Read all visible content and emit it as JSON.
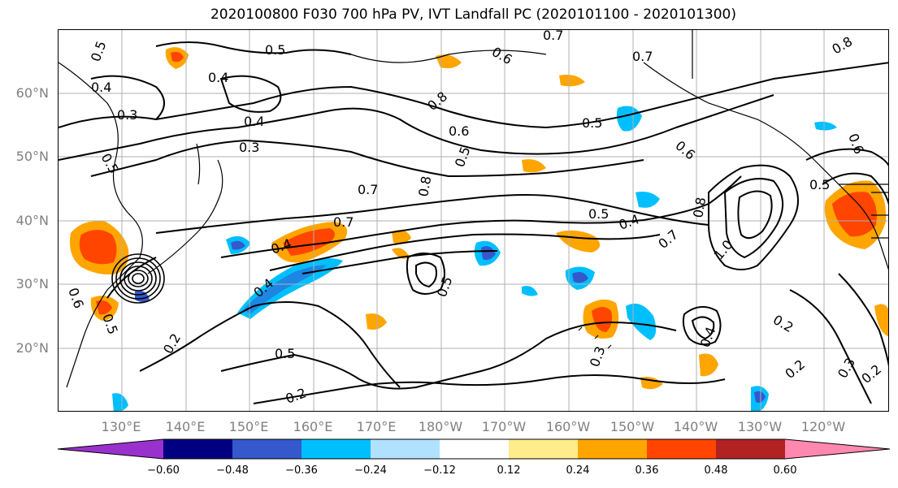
{
  "title": "2020100800 F030 700 hPa PV, IVT Landfall PC (2020101100 - 2020101300)",
  "lat_labels": [
    "60°N",
    "50°N",
    "40°N",
    "30°N",
    "20°N"
  ],
  "lon_labels": [
    "130°E",
    "140°E",
    "150°E",
    "160°E",
    "170°E",
    "180°W",
    "170°W",
    "160°W",
    "150°W",
    "140°W",
    "130°W",
    "120°W"
  ],
  "contour_labels": [
    "0.5",
    "0.5",
    "0.4",
    "0.4",
    "0.3",
    "0.4",
    "0.3",
    "0.5",
    "0.6",
    "0.7",
    "0.8",
    "0.6",
    "0.5",
    "0.7",
    "0.7",
    "0.5",
    "0.6",
    "0.8",
    "0.4",
    "0.7",
    "0.5",
    "0.4",
    "0.8",
    "0.7",
    "1.0",
    "0.4",
    "0.5",
    "0.2",
    "0.5",
    "0.2",
    "0.2",
    "0.3",
    "0.4",
    "0.2",
    "0.3",
    "0.2",
    "0.6",
    "0.5",
    "0.8",
    "0.6",
    "0.5"
  ],
  "colorbar": {
    "ticks": [
      "−0.60",
      "−0.48",
      "−0.36",
      "−0.24",
      "−0.12",
      "0.12",
      "0.24",
      "0.36",
      "0.48",
      "0.60"
    ],
    "colors": [
      "#9932CC",
      "#000080",
      "#3558CC",
      "#00BFFF",
      "#B0E2FF",
      "#FFFFFF",
      "#FFEC8B",
      "#FFA500",
      "#FF4500",
      "#B22222",
      "#FF88B0"
    ]
  },
  "fill_colors": {
    "neg_strong": "#3558CC",
    "neg_mid": "#00BFFF",
    "neg_weak": "#B0E2FF",
    "pos_weak": "#FFEC8B",
    "pos_mid": "#FFA500",
    "pos_strong": "#FF4500"
  }
}
